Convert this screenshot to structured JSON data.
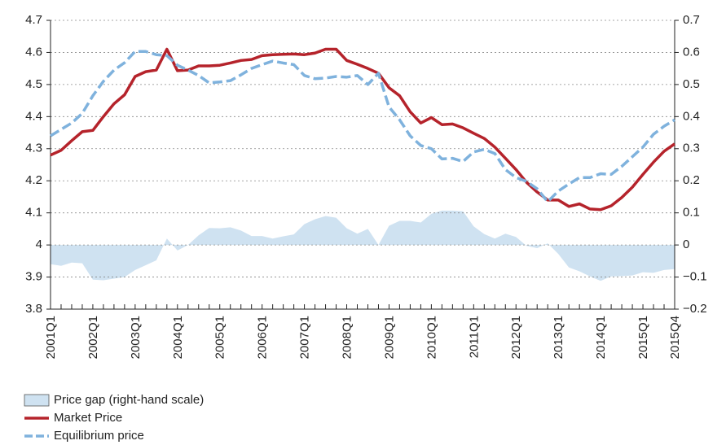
{
  "chart_data": {
    "type": "line",
    "categories": [
      "2001Q1",
      null,
      null,
      null,
      "2002Q1",
      null,
      null,
      null,
      "2003Q1",
      null,
      null,
      null,
      "2004Q1",
      null,
      null,
      null,
      "2005Q1",
      null,
      null,
      null,
      "2006Q1",
      null,
      null,
      null,
      "2007Q1",
      null,
      null,
      null,
      "2008Q1",
      null,
      null,
      null,
      "2009Q1",
      null,
      null,
      null,
      "2010Q1",
      null,
      null,
      null,
      "2011Q1",
      null,
      null,
      null,
      "2012Q1",
      null,
      null,
      null,
      "2013Q1",
      null,
      null,
      null,
      "2014Q1",
      null,
      null,
      null,
      "2015Q1",
      null,
      null,
      "2015Q4"
    ],
    "series": [
      {
        "name": "Price gap (right-hand scale)",
        "kind": "area",
        "axis": "y2",
        "color": "#cfe2f1",
        "values": [
          -0.06,
          -0.065,
          -0.055,
          -0.057,
          -0.108,
          -0.11,
          -0.105,
          -0.1,
          -0.078,
          -0.063,
          -0.048,
          0.02,
          -0.017,
          0,
          0.03,
          0.053,
          0.052,
          0.055,
          0.045,
          0.028,
          0.028,
          0.02,
          0.027,
          0.033,
          0.065,
          0.08,
          0.09,
          0.085,
          0.052,
          0.035,
          0.05,
          0,
          0.06,
          0.075,
          0.075,
          0.07,
          0.097,
          0.107,
          0.107,
          0.105,
          0.058,
          0.034,
          0.02,
          0.035,
          0.025,
          -0.003,
          -0.01,
          0.005,
          -0.028,
          -0.07,
          -0.082,
          -0.098,
          -0.112,
          -0.098,
          -0.097,
          -0.095,
          -0.085,
          -0.087,
          -0.078,
          -0.075
        ]
      },
      {
        "name": "Market Price",
        "kind": "line",
        "color": "#b5232b",
        "values": [
          4.28,
          4.295,
          4.325,
          4.353,
          4.357,
          4.4,
          4.44,
          4.468,
          4.525,
          4.54,
          4.545,
          4.61,
          4.543,
          4.545,
          4.558,
          4.558,
          4.56,
          4.567,
          4.575,
          4.578,
          4.59,
          4.593,
          4.594,
          4.595,
          4.593,
          4.598,
          4.61,
          4.61,
          4.575,
          4.563,
          4.55,
          4.535,
          4.49,
          4.465,
          4.415,
          4.38,
          4.397,
          4.375,
          4.377,
          4.365,
          4.348,
          4.332,
          4.305,
          4.27,
          4.235,
          4.195,
          4.165,
          4.14,
          4.14,
          4.12,
          4.128,
          4.112,
          4.11,
          4.122,
          4.148,
          4.18,
          4.22,
          4.258,
          4.292,
          4.315
        ]
      },
      {
        "name": "Equilibrium price",
        "kind": "dashed",
        "color": "#7fb2dd",
        "values": [
          4.34,
          4.36,
          4.38,
          4.41,
          4.465,
          4.51,
          4.545,
          4.568,
          4.603,
          4.603,
          4.593,
          4.59,
          4.56,
          4.545,
          4.528,
          4.505,
          4.508,
          4.512,
          4.53,
          4.55,
          4.562,
          4.573,
          4.567,
          4.562,
          4.528,
          4.518,
          4.52,
          4.525,
          4.523,
          4.528,
          4.5,
          4.535,
          4.43,
          4.39,
          4.34,
          4.31,
          4.3,
          4.268,
          4.27,
          4.26,
          4.29,
          4.298,
          4.285,
          4.235,
          4.21,
          4.198,
          4.175,
          4.135,
          4.168,
          4.19,
          4.21,
          4.21,
          4.222,
          4.22,
          4.245,
          4.275,
          4.305,
          4.345,
          4.37,
          4.39
        ]
      }
    ],
    "ylim": [
      3.8,
      4.7
    ],
    "yticks": [
      3.8,
      3.9,
      4,
      4.1,
      4.2,
      4.3,
      4.4,
      4.5,
      4.6,
      4.7
    ],
    "y2lim": [
      -0.2,
      0.7
    ],
    "y2ticks": [
      {
        "value": -0.2,
        "label": "−0.2"
      },
      {
        "value": -0.1,
        "label": "−0.1"
      },
      0,
      0.1,
      0.2,
      0.3,
      0.4,
      0.5,
      0.6,
      0.7
    ],
    "grid": true,
    "legend": "bottom-left"
  }
}
